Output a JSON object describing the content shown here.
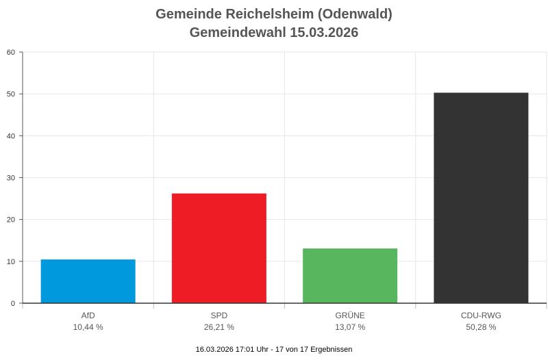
{
  "chart_data": {
    "type": "bar",
    "title": "Gemeinde Reichelsheim (Odenwald)",
    "subtitle": "Gemeindewahl 15.03.2026",
    "categories": [
      "AfD",
      "SPD",
      "GRÜNE",
      "CDU-RWG"
    ],
    "values": [
      10.44,
      26.21,
      13.07,
      50.28
    ],
    "value_labels": [
      "10,44 %",
      "26,21 %",
      "13,07 %",
      "50,28 %"
    ],
    "colors": [
      "#0099dd",
      "#ee1c25",
      "#58b65f",
      "#333333"
    ],
    "ylim": [
      0,
      60
    ],
    "yticks": [
      0,
      10,
      20,
      30,
      40,
      50,
      60
    ],
    "grid": true,
    "xlabel": "",
    "ylabel": ""
  },
  "footer": "16.03.2026 17:01 Uhr - 17 von 17 Ergebnissen"
}
